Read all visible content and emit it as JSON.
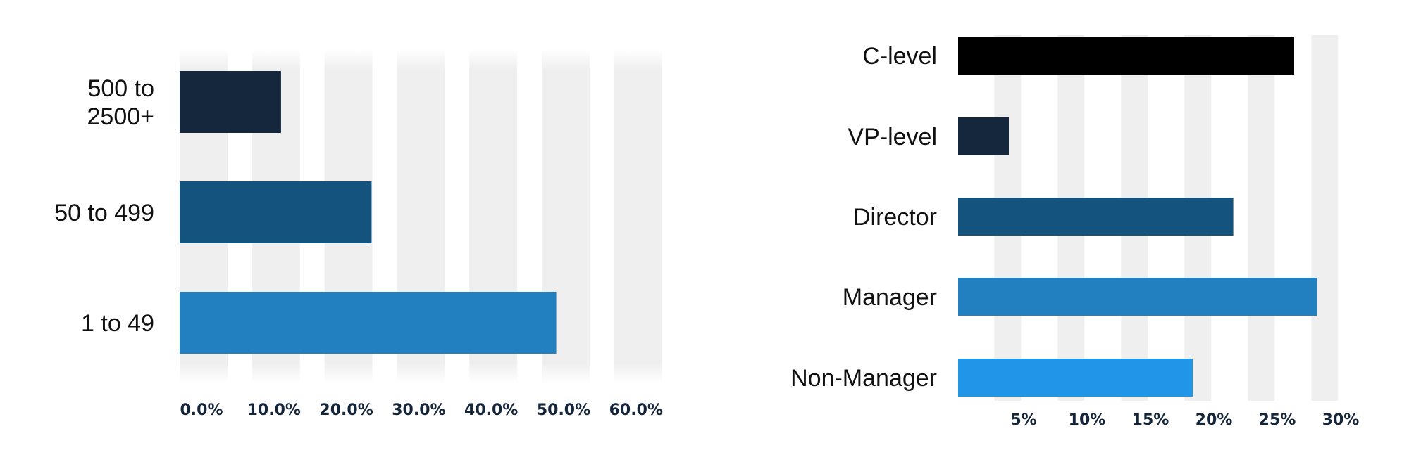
{
  "chart_data": [
    {
      "type": "bar",
      "orientation": "horizontal",
      "title": "",
      "xlabel": "",
      "ylabel": "",
      "categories": [
        "500 to\n2500+",
        "50 to 499",
        "1 to 49"
      ],
      "values": [
        0.14,
        0.265,
        0.52
      ],
      "colors": [
        "#15273c",
        "#15537f",
        "#2280c0"
      ],
      "xlim": [
        0,
        0.66
      ],
      "xticks": [
        "0.0%",
        "10.0%",
        "20.0%",
        "30.0%",
        "40.0%",
        "50.0%",
        "60.0%"
      ],
      "xtick_values": [
        0.0,
        0.1,
        0.2,
        0.3,
        0.4,
        0.5,
        0.6
      ],
      "grid": "alternating-vertical-bands",
      "legend": "none"
    },
    {
      "type": "bar",
      "orientation": "horizontal",
      "title": "",
      "xlabel": "",
      "ylabel": "",
      "categories": [
        "C-level",
        "VP-level",
        "Director",
        "Manager",
        "Non-Manager"
      ],
      "values": [
        0.265,
        0.04,
        0.217,
        0.283,
        0.185
      ],
      "colors": [
        "#000000",
        "#15273c",
        "#15537f",
        "#2280c0",
        "#2196e8"
      ],
      "xlim": [
        0,
        0.287
      ],
      "xticks": [
        "5%",
        "10%",
        "15%",
        "20%",
        "25%",
        "30%"
      ],
      "xtick_values": [
        0.05,
        0.1,
        0.15,
        0.2,
        0.25,
        0.3
      ],
      "grid": "alternating-vertical-bands",
      "legend": "none"
    }
  ]
}
